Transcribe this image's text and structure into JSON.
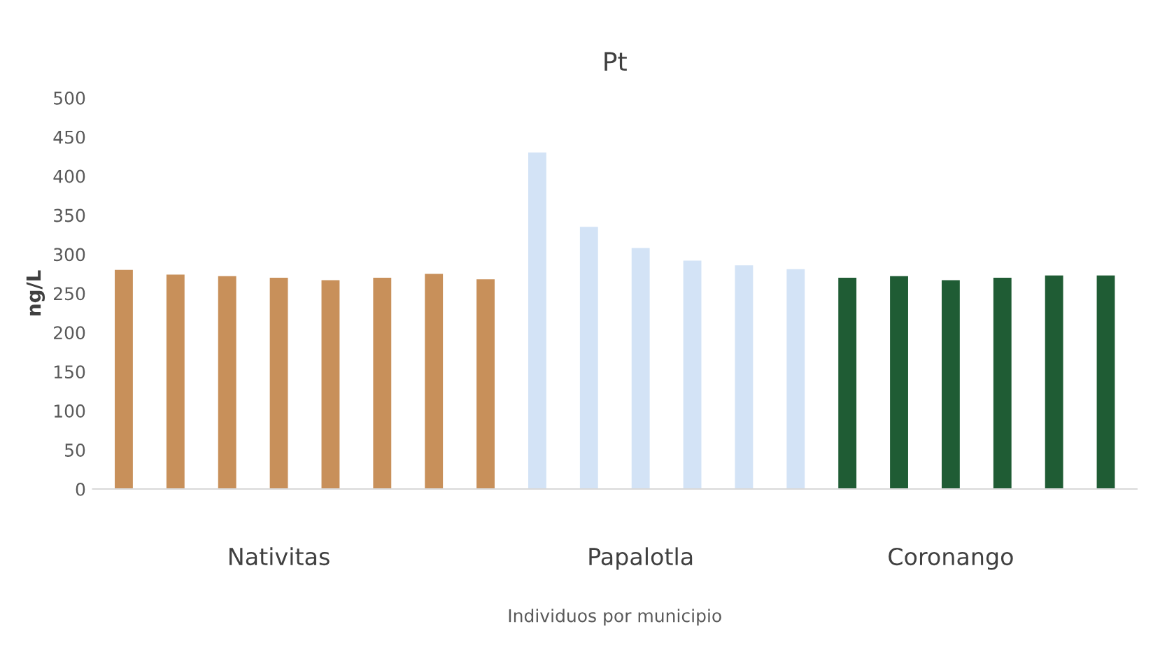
{
  "chart_data": {
    "type": "bar",
    "title": "Pt",
    "ylabel": "ng/L",
    "xlabel": "Individuos por municipio",
    "categories": [
      null,
      null,
      null,
      "Nativitas",
      null,
      null,
      null,
      null,
      null,
      null,
      "Papalotla",
      null,
      null,
      null,
      null,
      null,
      "Coronango",
      null,
      null,
      null
    ],
    "values": [
      280,
      274,
      272,
      270,
      267,
      270,
      275,
      268,
      430,
      335,
      308,
      292,
      286,
      281,
      270,
      272,
      267,
      270,
      273,
      273
    ],
    "colors": [
      "#c8905a",
      "#c8905a",
      "#c8905a",
      "#c8905a",
      "#c8905a",
      "#c8905a",
      "#c8905a",
      "#c8905a",
      "#d3e3f6",
      "#d3e3f6",
      "#d3e3f6",
      "#d3e3f6",
      "#d3e3f6",
      "#d3e3f6",
      "#1f5c34",
      "#1f5c34",
      "#1f5c34",
      "#1f5c34",
      "#1f5c34",
      "#1f5c34"
    ],
    "ylim": [
      0,
      500
    ],
    "yticks": [
      0,
      50,
      100,
      150,
      200,
      250,
      300,
      350,
      400,
      450,
      500
    ],
    "grid": false
  }
}
